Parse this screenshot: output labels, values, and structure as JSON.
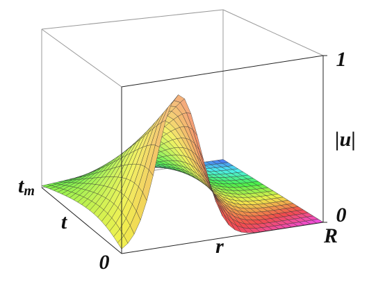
{
  "chart_data": {
    "type": "surface",
    "z_label": "|u|",
    "zlim": [
      0,
      1
    ],
    "zticks": [
      0,
      1
    ],
    "r_label": "r",
    "r_ticks": [
      "0",
      "R"
    ],
    "t_label": "t",
    "t_end": {
      "base": "t",
      "sub": "m"
    }
  }
}
